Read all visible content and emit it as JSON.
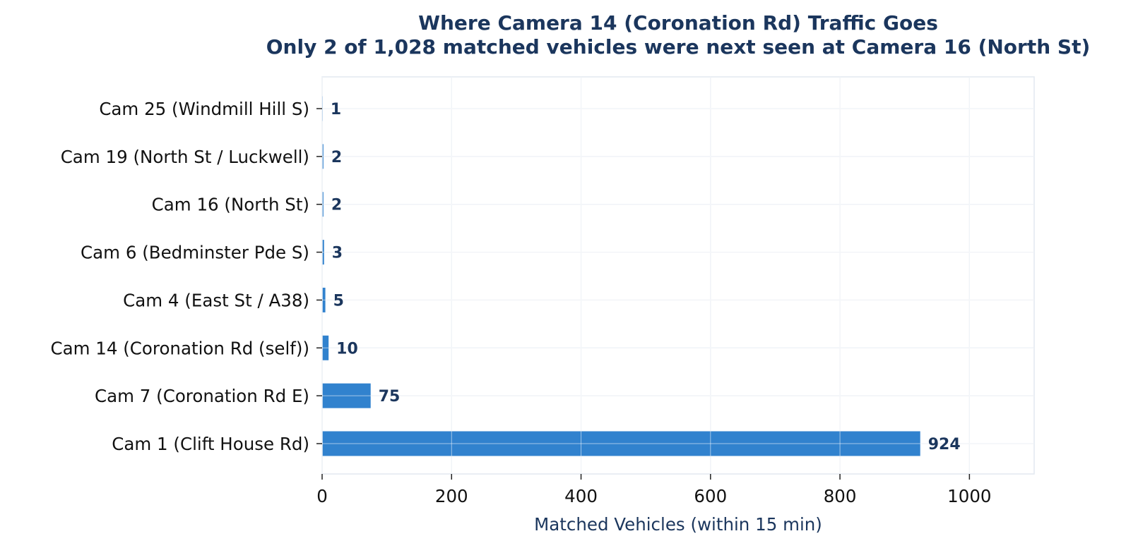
{
  "chart_data": {
    "type": "bar",
    "orientation": "horizontal",
    "title": "Where Camera 14 (Coronation Rd) Traffic Goes",
    "subtitle": "Only 2 of 1,028 matched vehicles were next seen at Camera 16 (North St)",
    "xlabel": "Matched Vehicles (within 15 min)",
    "ylabel": "",
    "categories": [
      "Cam 25 (Windmill Hill S)",
      "Cam 19 (North St / Luckwell)",
      "Cam 16 (North St)",
      "Cam 6 (Bedminster Pde S)",
      "Cam 4 (East St / A38)",
      "Cam 14 (Coronation Rd (self))",
      "Cam 7 (Coronation Rd E)",
      "Cam 1 (Clift House Rd)"
    ],
    "values": [
      1,
      2,
      2,
      3,
      5,
      10,
      75,
      924
    ],
    "xlim": [
      0,
      1100
    ],
    "xticks": [
      0,
      200,
      400,
      600,
      800,
      1000
    ],
    "grid": true,
    "colors": {
      "bar": "#3182ce",
      "title": "#1b365d",
      "value_label": "#1b365d",
      "axis_title": "#1b365d",
      "grid": "#e2e8f0",
      "frame": "#e2e8f0",
      "text": "#111111"
    }
  }
}
